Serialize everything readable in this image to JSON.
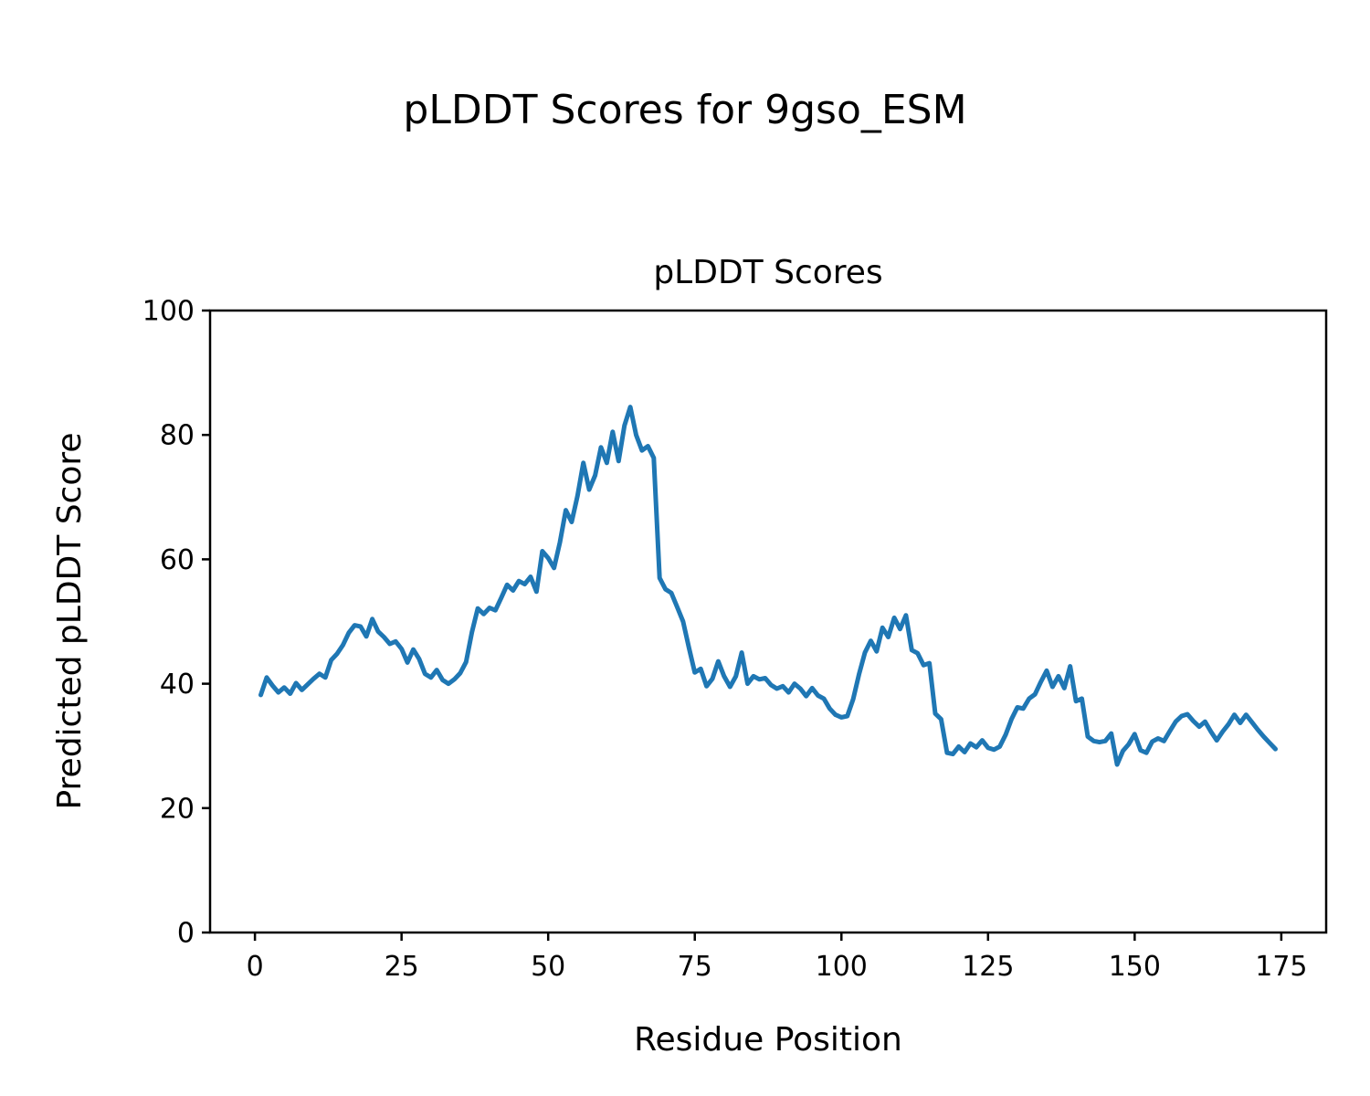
{
  "figure": {
    "suptitle": "pLDDT Scores for 9gso_ESM"
  },
  "chart_data": {
    "type": "line",
    "title": "pLDDT Scores",
    "xlabel": "Residue Position",
    "ylabel": "Predicted pLDDT Score",
    "legend": null,
    "grid": false,
    "line_color": "#1f77b4",
    "line_width": 5,
    "xlim": [
      -7.65,
      182.65
    ],
    "ylim": [
      0,
      100
    ],
    "xticks": [
      0,
      25,
      50,
      75,
      100,
      125,
      150,
      175
    ],
    "yticks": [
      0,
      20,
      40,
      60,
      80,
      100
    ],
    "x_start": 1,
    "series": [
      {
        "name": "pLDDT",
        "x_label_meaning": "residue index",
        "values": [
          38.2,
          41.0,
          39.7,
          38.6,
          39.4,
          38.4,
          40.1,
          39.0,
          39.9,
          40.8,
          41.6,
          41.0,
          43.8,
          44.8,
          46.2,
          48.2,
          49.4,
          49.2,
          47.6,
          50.4,
          48.4,
          47.5,
          46.4,
          46.8,
          45.6,
          43.4,
          45.5,
          44.0,
          41.6,
          41.0,
          42.2,
          40.6,
          40.0,
          40.7,
          41.7,
          43.5,
          48.3,
          52.1,
          51.2,
          52.2,
          51.8,
          53.8,
          55.9,
          55.0,
          56.5,
          56.0,
          57.2,
          54.8,
          61.3,
          60.2,
          58.6,
          62.7,
          67.9,
          66.0,
          70.2,
          75.5,
          71.2,
          73.5,
          78.0,
          75.5,
          80.5,
          75.8,
          81.5,
          84.5,
          80.0,
          77.5,
          78.2,
          76.3,
          57.0,
          55.2,
          54.6,
          52.3,
          50.0,
          45.8,
          41.8,
          42.4,
          39.6,
          40.8,
          43.6,
          41.2,
          39.5,
          41.2,
          45.0,
          40.0,
          41.2,
          40.7,
          40.9,
          39.8,
          39.2,
          39.6,
          38.6,
          40.0,
          39.2,
          38.0,
          39.3,
          38.1,
          37.6,
          36.0,
          35.0,
          34.6,
          34.8,
          37.5,
          41.5,
          45.0,
          46.9,
          45.2,
          49.0,
          47.5,
          50.6,
          48.8,
          51.0,
          45.4,
          44.9,
          43.0,
          43.3,
          35.2,
          34.3,
          28.9,
          28.7,
          29.9,
          29.0,
          30.4,
          29.8,
          30.9,
          29.7,
          29.4,
          29.9,
          31.8,
          34.3,
          36.2,
          36.0,
          37.6,
          38.3,
          40.3,
          42.1,
          39.5,
          41.2,
          39.3,
          42.8,
          37.2,
          37.6,
          31.5,
          30.8,
          30.6,
          30.8,
          32.0,
          27.0,
          29.2,
          30.3,
          31.9,
          29.3,
          28.9,
          30.7,
          31.2,
          30.8,
          32.4,
          33.9,
          34.8,
          35.1,
          34.0,
          33.1,
          33.9,
          32.3,
          30.9,
          32.3,
          33.5,
          35.0,
          33.7,
          35.0,
          33.8,
          32.6,
          31.5,
          30.5,
          29.5
        ]
      }
    ]
  }
}
